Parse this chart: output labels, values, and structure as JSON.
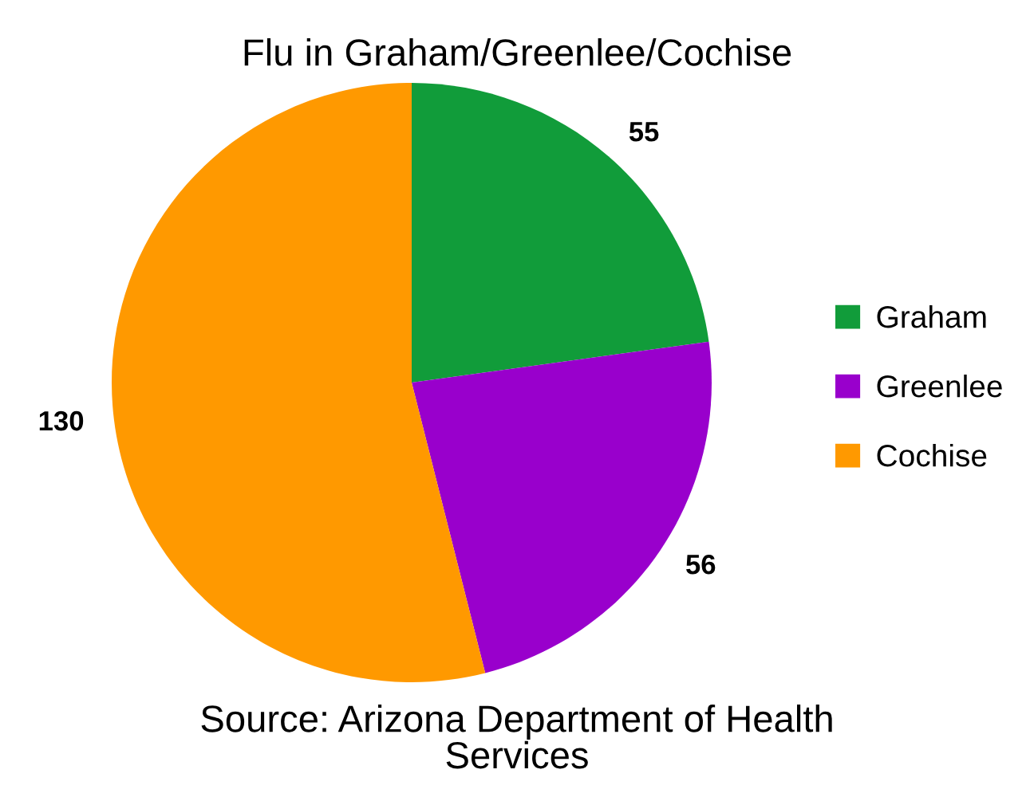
{
  "chart_data": {
    "type": "pie",
    "title": "Flu in Graham/Greenlee/Cochise",
    "categories": [
      "Graham",
      "Greenlee",
      "Cochise"
    ],
    "values": [
      55,
      56,
      130
    ],
    "colors": [
      "#119c3a",
      "#9900cc",
      "#ff9900"
    ],
    "data_labels": true,
    "legend": "right",
    "annotations": [
      "Source: Arizona Department of Health Services"
    ]
  }
}
